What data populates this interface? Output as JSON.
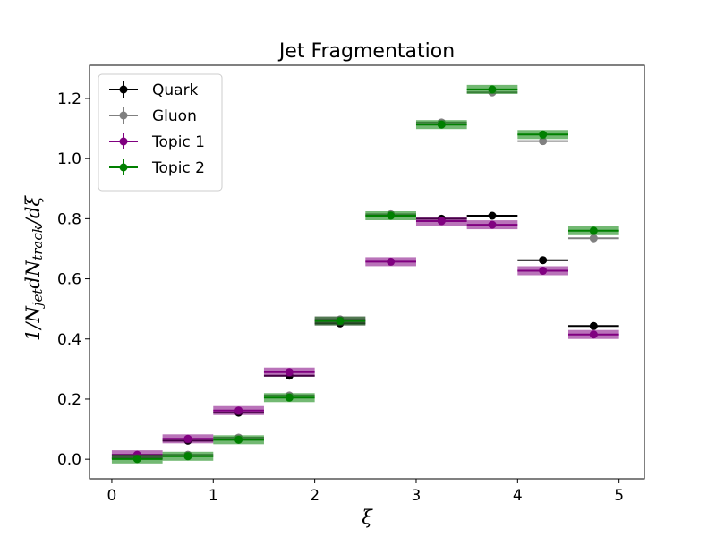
{
  "chart_data": {
    "type": "scatter",
    "title": "Jet Fragmentation",
    "xlabel": "ξ",
    "ylabel": "1/N_jet dN_track/dξ",
    "xlim": [
      -0.22,
      5.25
    ],
    "ylim": [
      -0.065,
      1.31
    ],
    "xticks": [
      0,
      1,
      2,
      3,
      4,
      5
    ],
    "yticks": [
      0.0,
      0.2,
      0.4,
      0.6,
      0.8,
      1.0,
      1.2
    ],
    "xtick_labels": [
      "0",
      "1",
      "2",
      "3",
      "4",
      "5"
    ],
    "ytick_labels": [
      "0.0",
      "0.2",
      "0.4",
      "0.6",
      "0.8",
      "1.0",
      "1.2"
    ],
    "bin_edges": [
      0,
      0.5,
      1.0,
      1.5,
      2.0,
      2.5,
      3.0,
      3.5,
      4.0,
      4.5,
      5.0
    ],
    "x": [
      0.25,
      0.75,
      1.25,
      1.75,
      2.25,
      2.75,
      3.25,
      3.75,
      4.25,
      4.75
    ],
    "legend_position": "top-left",
    "grid": false,
    "series": [
      {
        "name": "Quark",
        "color": "#000000",
        "band": false,
        "values": [
          0.005,
          0.062,
          0.155,
          0.278,
          0.452,
          null,
          0.8,
          0.81,
          0.662,
          0.443
        ]
      },
      {
        "name": "Gluon",
        "color": "#808080",
        "band": false,
        "values": [
          0.003,
          0.015,
          0.072,
          0.212,
          0.465,
          0.815,
          1.12,
          1.22,
          1.058,
          0.735
        ]
      },
      {
        "name": "Topic 1",
        "color": "#800080",
        "band": true,
        "values": [
          0.015,
          0.068,
          0.162,
          0.29,
          0.46,
          0.657,
          0.792,
          0.78,
          0.627,
          0.415
        ]
      },
      {
        "name": "Topic 2",
        "color": "#008000",
        "band": true,
        "values": [
          0.001,
          0.01,
          0.065,
          0.205,
          0.46,
          0.81,
          1.113,
          1.23,
          1.08,
          0.76
        ]
      }
    ]
  }
}
